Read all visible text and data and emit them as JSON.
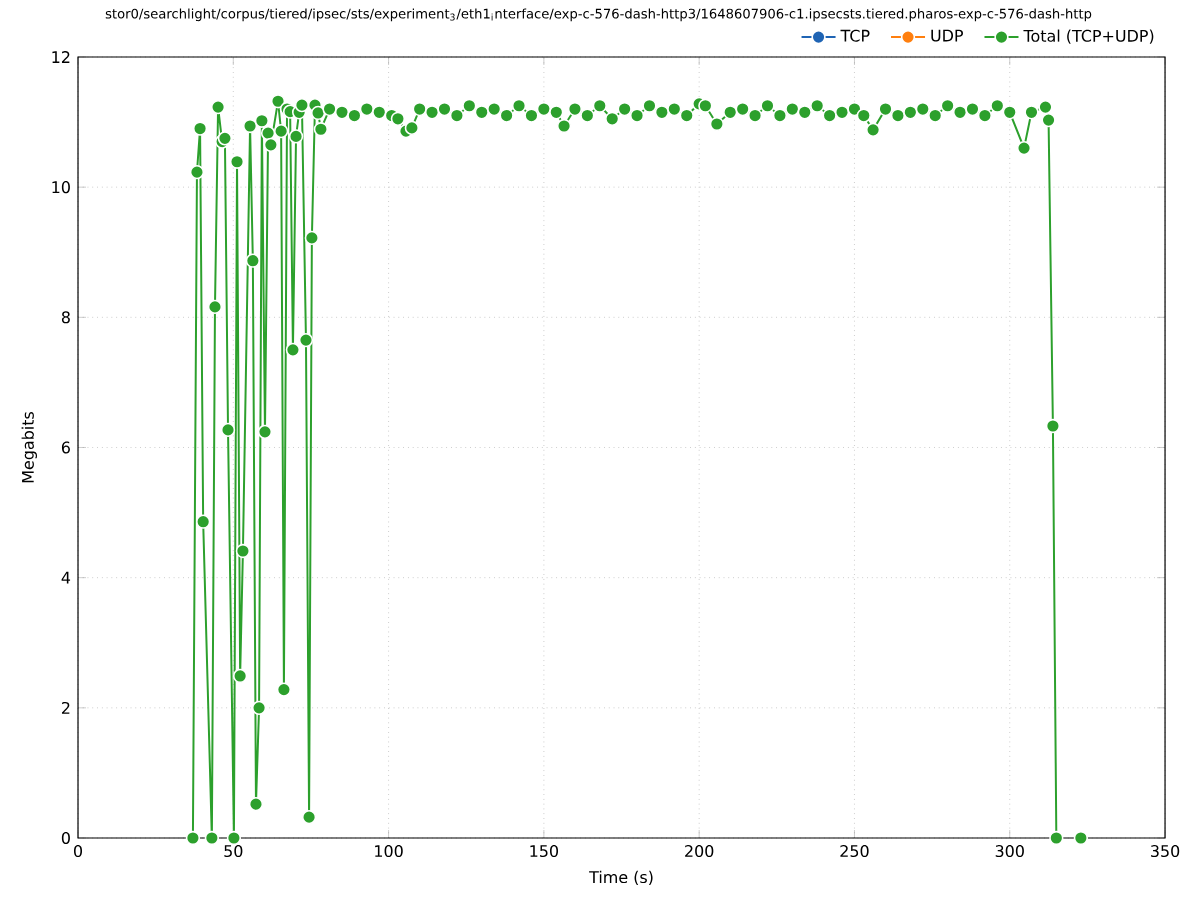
{
  "chart_data": {
    "type": "line",
    "title": "stor0/searchlight/corpus/tiered/ipsec/sts/experiment$_{3}$/eth1$_{i}$nterface/exp-c-576-dash-http3/1648607906-c1.ipsecsts.tiered.pharos-exp-c-576-dash-http",
    "xlabel": "Time (s)",
    "ylabel": "Megabits",
    "xlim": [
      0,
      350
    ],
    "xticks": [
      0,
      50,
      100,
      150,
      200,
      250,
      300,
      350
    ],
    "ylim": [
      0,
      12
    ],
    "yticks": [
      0,
      2,
      4,
      6,
      8,
      10,
      12
    ],
    "grid": true,
    "legend": "top right",
    "marker": "circle",
    "line_style": "solid",
    "series": [
      {
        "name": "TCP",
        "color": "#1f64b4",
        "values": [
          null
        ]
      },
      {
        "name": "UDP",
        "color": "#ff7f0e",
        "values": [
          null
        ]
      },
      {
        "name": "Total (TCP+UDP)",
        "color": "#2ca02c",
        "x": [
          37.0,
          38.3,
          39.3,
          40.3,
          43.1,
          44.1,
          45.1,
          46.4,
          47.3,
          48.3,
          50.2,
          51.2,
          52.2,
          53.1,
          55.4,
          56.3,
          57.3,
          58.3,
          59.2,
          60.2,
          61.2,
          62.1,
          64.4,
          65.4,
          66.3,
          67.3,
          68.3,
          69.2,
          70.2,
          71.2,
          72.1,
          73.4,
          74.4,
          75.3,
          76.3,
          77.3,
          78.2,
          81,
          85,
          89,
          93,
          97,
          101,
          103,
          105.6,
          107.5,
          110,
          114,
          118,
          122,
          126,
          130,
          134,
          138,
          142,
          146,
          150,
          154,
          156.5,
          160,
          164,
          168,
          172,
          176,
          180,
          184,
          188,
          192,
          196,
          200,
          202,
          205.7,
          210,
          214,
          218,
          222,
          226,
          230,
          234,
          238,
          242,
          246,
          250,
          253,
          256,
          260,
          264,
          268,
          272,
          276,
          280,
          284,
          288,
          292,
          296,
          300,
          304.6,
          307,
          311.5,
          312.5,
          313.9,
          315,
          null,
          322.9
        ],
        "values": [
          0.0,
          10.23,
          10.9,
          4.86,
          0.0,
          8.16,
          11.23,
          10.7,
          10.75,
          6.27,
          0.0,
          10.39,
          2.49,
          4.41,
          10.94,
          8.87,
          0.52,
          2.0,
          11.02,
          6.24,
          10.83,
          10.65,
          11.32,
          10.86,
          2.28,
          11.2,
          11.16,
          7.5,
          10.78,
          11.15,
          11.26,
          7.65,
          0.32,
          9.22,
          11.26,
          11.14,
          10.89,
          11.2,
          11.15,
          11.1,
          11.2,
          11.15,
          11.1,
          11.05,
          10.86,
          10.91,
          11.2,
          11.15,
          11.2,
          11.1,
          11.25,
          11.15,
          11.2,
          11.1,
          11.25,
          11.1,
          11.2,
          11.15,
          10.94,
          11.2,
          11.1,
          11.25,
          11.05,
          11.2,
          11.1,
          11.25,
          11.15,
          11.2,
          11.1,
          11.28,
          11.25,
          10.97,
          11.15,
          11.2,
          11.1,
          11.25,
          11.1,
          11.2,
          11.15,
          11.25,
          11.1,
          11.15,
          11.2,
          11.1,
          10.88,
          11.2,
          11.1,
          11.15,
          11.2,
          11.1,
          11.25,
          11.15,
          11.2,
          11.1,
          11.25,
          11.15,
          10.6,
          11.15,
          11.23,
          11.03,
          6.33,
          0.0,
          null,
          0.0
        ]
      }
    ]
  }
}
